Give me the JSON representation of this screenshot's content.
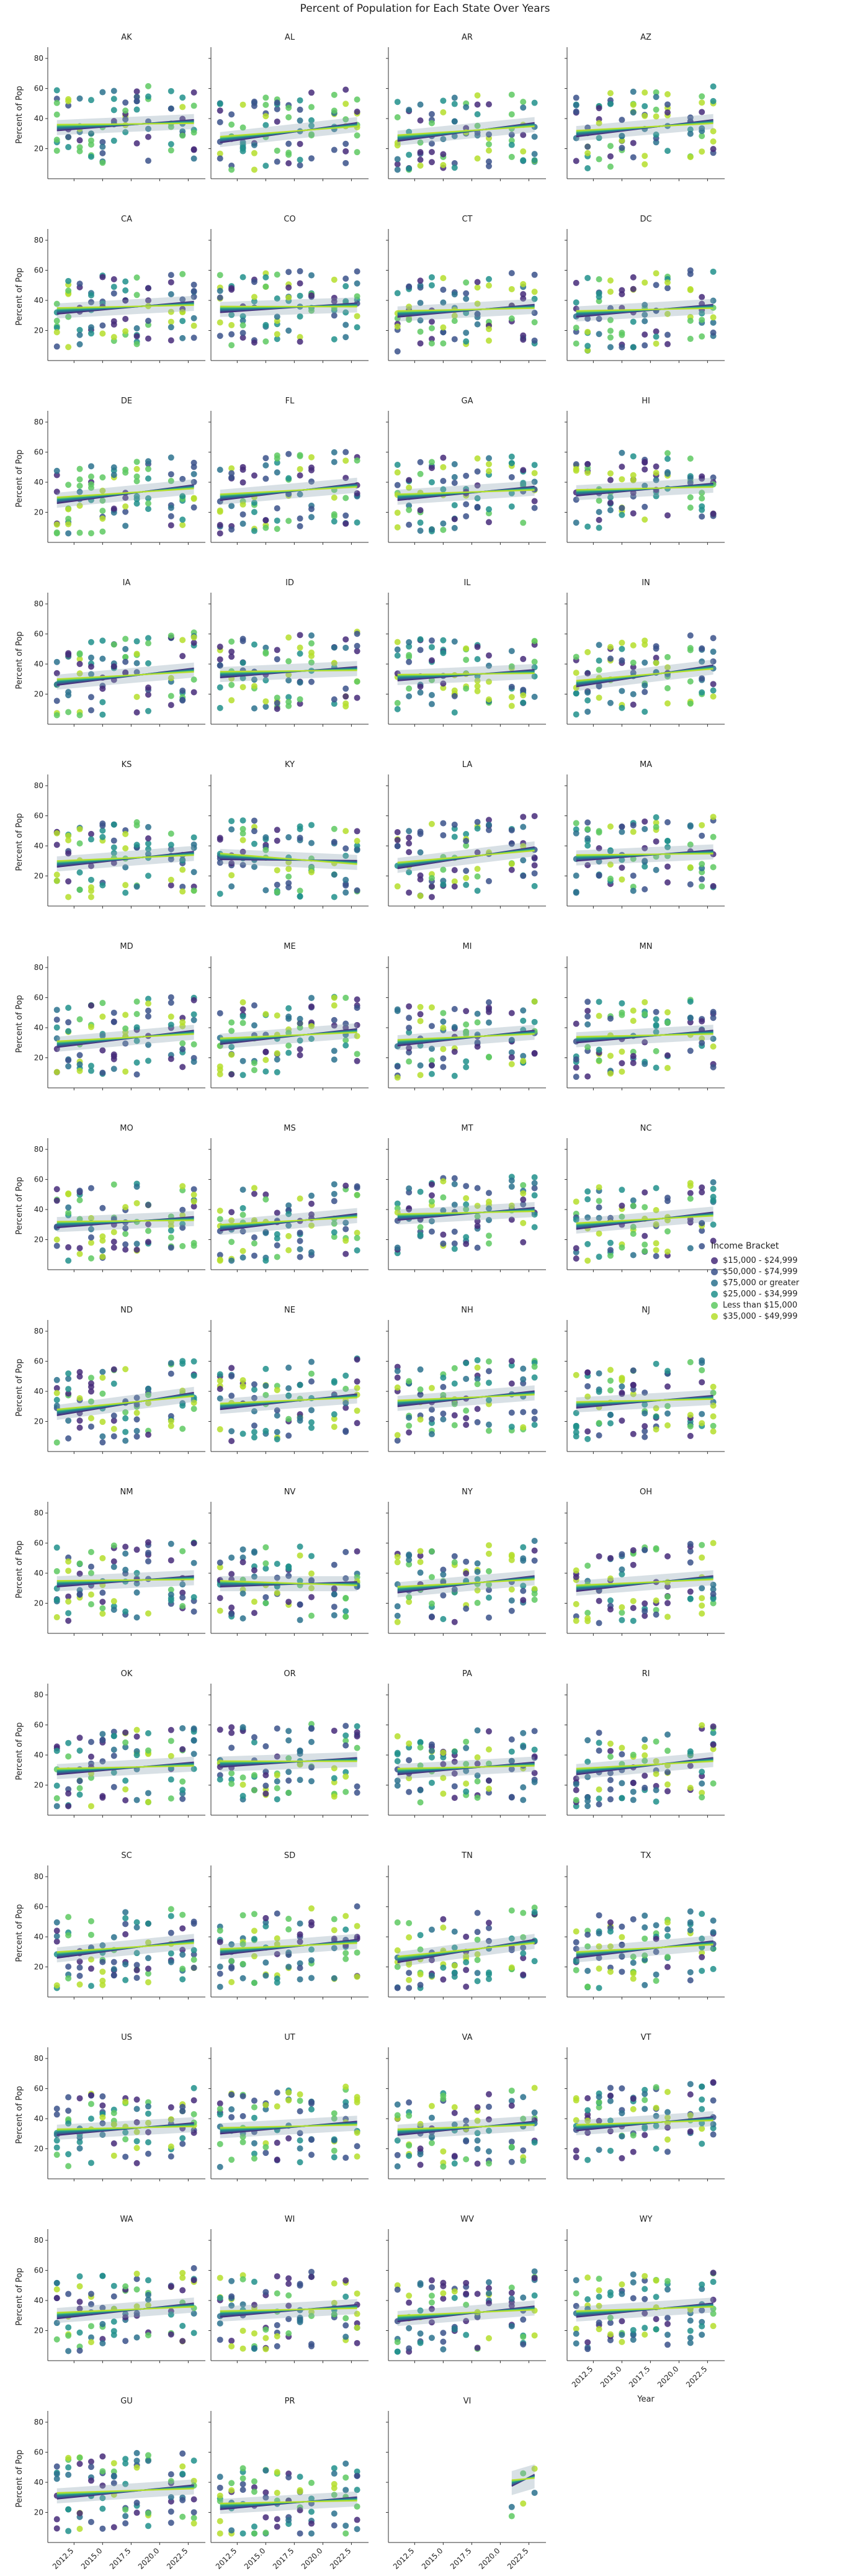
{
  "figure": {
    "title": "Percent of Population for Each State Over Years"
  },
  "chart_data": {
    "type": "scatter",
    "subtype": "faceted scatter with linear regression lines and confidence bands",
    "facet_by": "state",
    "xlabel": "Year",
    "ylabel": "Percent of Pop",
    "xlim": [
      2010.2,
      2024.0
    ],
    "ylim": [
      0,
      85
    ],
    "xticks": [
      2012.5,
      2015.0,
      2017.5,
      2020.0,
      2022.5
    ],
    "xtick_labels": [
      "2012.5",
      "2015.0",
      "2017.5",
      "2020.0",
      "2022.5"
    ],
    "yticks": [
      20,
      40,
      60,
      80
    ],
    "ytick_labels": [
      "20",
      "40",
      "60",
      "80"
    ],
    "point_years": [
      2011,
      2012,
      2013,
      2014,
      2015,
      2016,
      2017,
      2018,
      2019,
      2021,
      2022,
      2023
    ],
    "legend": {
      "title": "Income Bracket",
      "placement": "right",
      "entries": [
        {
          "label": "$15,000 - $24,999",
          "color": "#472c7a"
        },
        {
          "label": "$50,000 - $74,999",
          "color": "#3b528b"
        },
        {
          "label": "$75,000 or greater",
          "color": "#2c728e"
        },
        {
          "label": "$25,000 - $34,999",
          "color": "#21918c"
        },
        {
          "label": "Less than $15,000",
          "color": "#5ec962"
        },
        {
          "label": "$35,000 - $49,999",
          "color": "#b5de2b"
        }
      ]
    },
    "facets": [
      {
        "state": "AK",
        "trend": [
          34,
          38
        ]
      },
      {
        "state": "AL",
        "trend": [
          26,
          36
        ]
      },
      {
        "state": "AR",
        "trend": [
          27,
          36
        ]
      },
      {
        "state": "AZ",
        "trend": [
          30,
          38
        ]
      },
      {
        "state": "CA",
        "trend": [
          33,
          38
        ]
      },
      {
        "state": "CO",
        "trend": [
          34,
          37
        ]
      },
      {
        "state": "CT",
        "trend": [
          31,
          36
        ]
      },
      {
        "state": "DC",
        "trend": [
          31,
          36
        ]
      },
      {
        "state": "DE",
        "trend": [
          28,
          37
        ]
      },
      {
        "state": "FL",
        "trend": [
          30,
          38
        ]
      },
      {
        "state": "GA",
        "trend": [
          30,
          36
        ]
      },
      {
        "state": "HI",
        "trend": [
          33,
          38
        ]
      },
      {
        "state": "IA",
        "trend": [
          28,
          36
        ]
      },
      {
        "state": "ID",
        "trend": [
          33,
          37
        ]
      },
      {
        "state": "IL",
        "trend": [
          31,
          35
        ]
      },
      {
        "state": "IN",
        "trend": [
          27,
          38
        ]
      },
      {
        "state": "KS",
        "trend": [
          28,
          35
        ]
      },
      {
        "state": "KY",
        "trend": [
          33,
          29
        ]
      },
      {
        "state": "LA",
        "trend": [
          27,
          38
        ]
      },
      {
        "state": "MA",
        "trend": [
          32,
          36
        ]
      },
      {
        "state": "MD",
        "trend": [
          29,
          37
        ]
      },
      {
        "state": "ME",
        "trend": [
          31,
          38
        ]
      },
      {
        "state": "MI",
        "trend": [
          30,
          37
        ]
      },
      {
        "state": "MN",
        "trend": [
          32,
          37
        ]
      },
      {
        "state": "MO",
        "trend": [
          30,
          34
        ]
      },
      {
        "state": "MS",
        "trend": [
          28,
          36
        ]
      },
      {
        "state": "MT",
        "trend": [
          35,
          40
        ]
      },
      {
        "state": "NC",
        "trend": [
          29,
          37
        ]
      },
      {
        "state": "ND",
        "trend": [
          26,
          38
        ]
      },
      {
        "state": "NE",
        "trend": [
          30,
          37
        ]
      },
      {
        "state": "NH",
        "trend": [
          32,
          39
        ]
      },
      {
        "state": "NJ",
        "trend": [
          31,
          36
        ]
      },
      {
        "state": "NM",
        "trend": [
          33,
          37
        ]
      },
      {
        "state": "NV",
        "trend": [
          33,
          33
        ]
      },
      {
        "state": "NY",
        "trend": [
          29,
          37
        ]
      },
      {
        "state": "OH",
        "trend": [
          30,
          37
        ]
      },
      {
        "state": "OK",
        "trend": [
          29,
          34
        ]
      },
      {
        "state": "OR",
        "trend": [
          34,
          37
        ]
      },
      {
        "state": "PA",
        "trend": [
          29,
          34
        ]
      },
      {
        "state": "RI",
        "trend": [
          29,
          37
        ]
      },
      {
        "state": "SC",
        "trend": [
          28,
          37
        ]
      },
      {
        "state": "SD",
        "trend": [
          30,
          37
        ]
      },
      {
        "state": "TN",
        "trend": [
          25,
          37
        ]
      },
      {
        "state": "TX",
        "trend": [
          28,
          36
        ]
      },
      {
        "state": "US",
        "trend": [
          31,
          36
        ]
      },
      {
        "state": "UT",
        "trend": [
          32,
          37
        ]
      },
      {
        "state": "VA",
        "trend": [
          31,
          37
        ]
      },
      {
        "state": "VT",
        "trend": [
          34,
          40
        ]
      },
      {
        "state": "WA",
        "trend": [
          30,
          37
        ]
      },
      {
        "state": "WI",
        "trend": [
          31,
          36
        ]
      },
      {
        "state": "WV",
        "trend": [
          28,
          35
        ]
      },
      {
        "state": "WY",
        "trend": [
          31,
          37
        ]
      },
      {
        "state": "GU",
        "trend": [
          31,
          37
        ]
      },
      {
        "state": "PR",
        "trend": [
          24,
          29
        ]
      },
      {
        "state": "VI",
        "trend": [
          17,
          44
        ],
        "points_only_recent": true
      }
    ]
  }
}
